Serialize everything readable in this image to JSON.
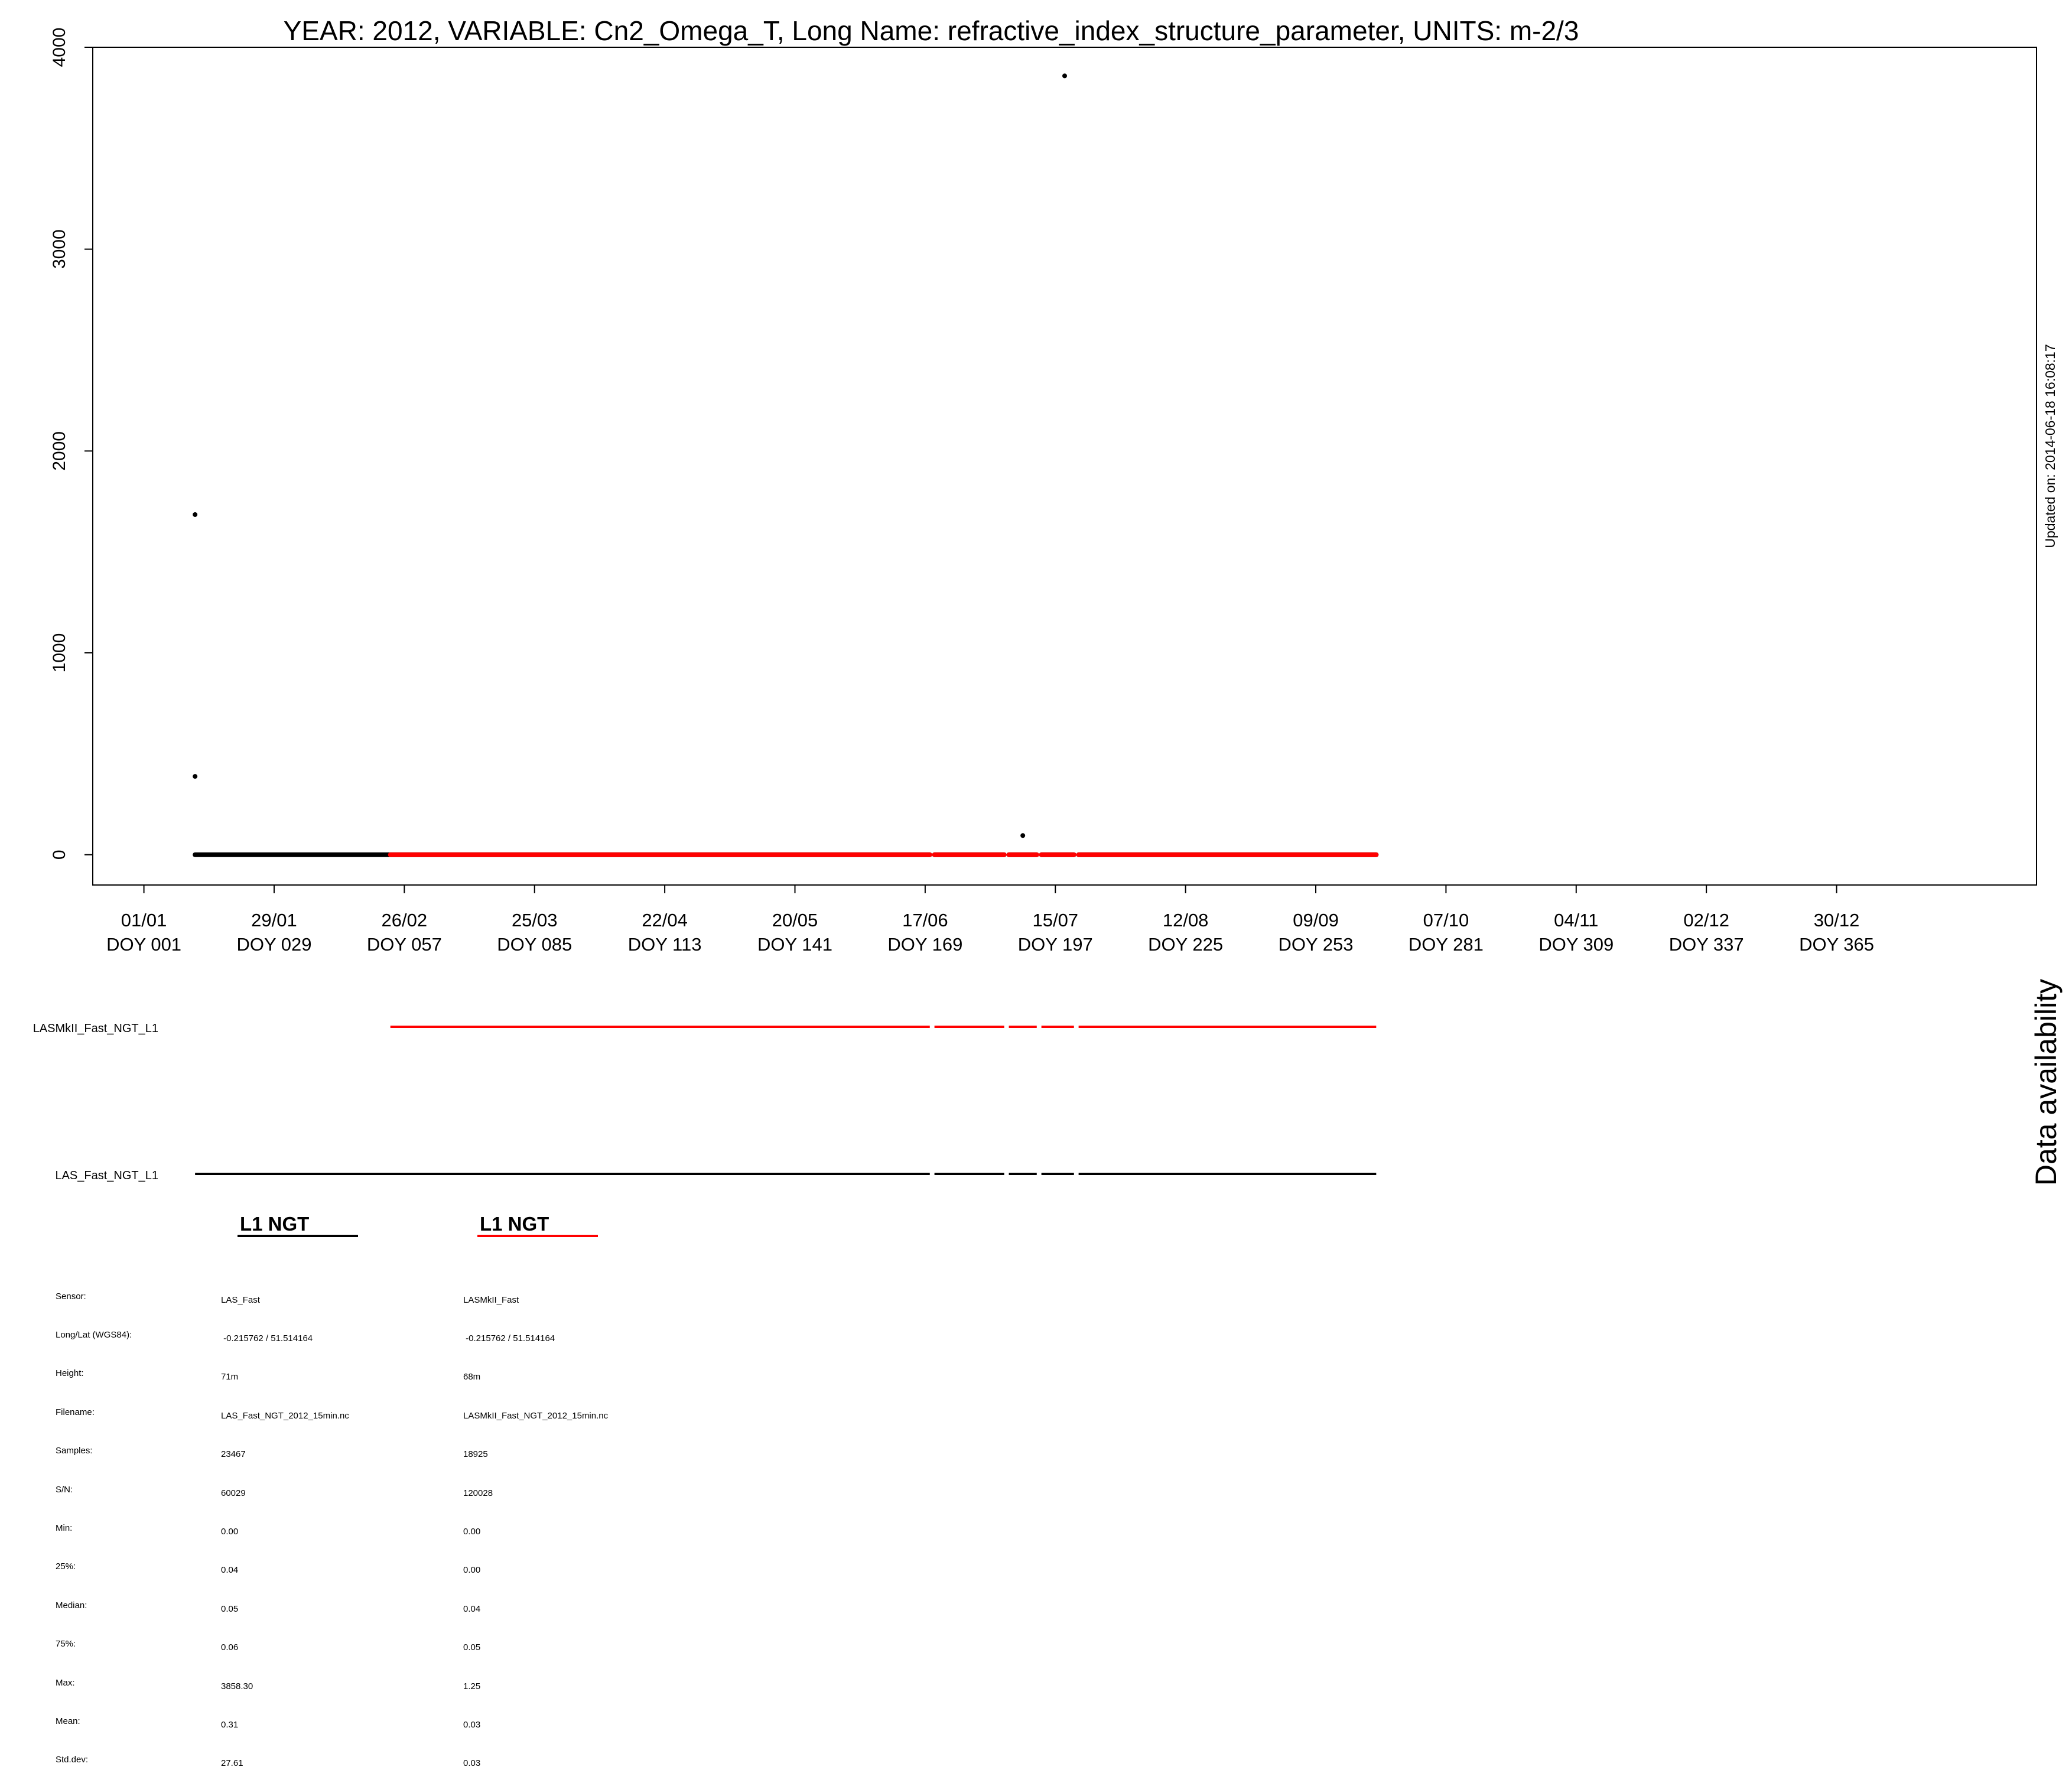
{
  "chart_data": {
    "type": "scatter",
    "title": "YEAR: 2012, VARIABLE: Cn2_Omega_T, Long Name: refractive_index_structure_parameter, UNITS: m-2/3",
    "xlabel": "",
    "ylabel": "",
    "ylim": [
      -150,
      4000
    ],
    "xlim": [
      -10,
      408
    ],
    "grid": false,
    "y_ticks": [
      0,
      1000,
      2000,
      3000,
      4000
    ],
    "x_ticks": [
      {
        "doy": 1,
        "date": "01/01",
        "label": "DOY 001"
      },
      {
        "doy": 29,
        "date": "29/01",
        "label": "DOY 029"
      },
      {
        "doy": 57,
        "date": "26/02",
        "label": "DOY 057"
      },
      {
        "doy": 85,
        "date": "25/03",
        "label": "DOY 085"
      },
      {
        "doy": 113,
        "date": "22/04",
        "label": "DOY 113"
      },
      {
        "doy": 141,
        "date": "20/05",
        "label": "DOY 141"
      },
      {
        "doy": 169,
        "date": "17/06",
        "label": "DOY 169"
      },
      {
        "doy": 197,
        "date": "15/07",
        "label": "DOY 197"
      },
      {
        "doy": 225,
        "date": "12/08",
        "label": "DOY 225"
      },
      {
        "doy": 253,
        "date": "09/09",
        "label": "DOY 253"
      },
      {
        "doy": 281,
        "date": "07/10",
        "label": "DOY 281"
      },
      {
        "doy": 309,
        "date": "04/11",
        "label": "DOY 309"
      },
      {
        "doy": 337,
        "date": "02/12",
        "label": "DOY 337"
      },
      {
        "doy": 365,
        "date": "30/12",
        "label": "DOY 365"
      }
    ],
    "series": [
      {
        "name": "LAS_Fast_NGT_L1",
        "color": "#000000",
        "baseline_segments": [
          [
            12,
            170
          ],
          [
            171,
            186
          ],
          [
            187,
            193
          ],
          [
            194,
            201
          ],
          [
            202,
            266
          ]
        ],
        "baseline_value": 0,
        "outliers": [
          {
            "doy": 12,
            "value": 1685
          },
          {
            "doy": 12,
            "value": 388
          },
          {
            "doy": 190,
            "value": 95
          },
          {
            "doy": 199,
            "value": 3858.3
          }
        ]
      },
      {
        "name": "LASMkII_Fast_NGT_L1",
        "color": "#ff0000",
        "baseline_segments": [
          [
            54,
            170
          ],
          [
            171,
            186
          ],
          [
            187,
            193
          ],
          [
            194,
            201
          ],
          [
            202,
            266
          ]
        ],
        "baseline_value": 0,
        "outliers": []
      }
    ]
  },
  "updated_label": "Updated on: 2014-06-18 16:08:17",
  "availability": {
    "title": "Data availability",
    "rows": [
      {
        "label": "LASMkII_Fast_NGT_L1",
        "color": "#ff0000",
        "segments": [
          [
            54,
            170
          ],
          [
            171,
            186
          ],
          [
            187,
            193
          ],
          [
            194,
            201
          ],
          [
            202,
            266
          ]
        ]
      },
      {
        "label": "LAS_Fast_NGT_L1",
        "color": "#000000",
        "segments": [
          [
            12,
            170
          ],
          [
            171,
            186
          ],
          [
            187,
            193
          ],
          [
            194,
            201
          ],
          [
            202,
            266
          ]
        ]
      }
    ]
  },
  "legend": [
    {
      "title": "L1 NGT",
      "color": "#000000"
    },
    {
      "title": "L1 NGT",
      "color": "#ff0000"
    }
  ],
  "stats": {
    "labels": [
      "Sensor:",
      "Long/Lat (WGS84):",
      "Height:",
      "Filename:",
      "Samples:",
      "S/N:",
      "Min:",
      "25%:",
      "Median:",
      "75%:",
      "Max:",
      "Mean:",
      "Std.dev:"
    ],
    "columns": [
      {
        "sensor": "LAS_Fast",
        "longlat": " -0.215762 / 51.514164",
        "height": "71m",
        "filename": "LAS_Fast_NGT_2012_15min.nc",
        "samples": "23467",
        "sn": "60029",
        "min": "0.00",
        "p25": "0.04",
        "median": "0.05",
        "p75": "0.06",
        "max": "3858.30",
        "mean": "0.31",
        "std": "27.61"
      },
      {
        "sensor": "LASMkII_Fast",
        "longlat": " -0.215762 / 51.514164",
        "height": "68m",
        "filename": "LASMkII_Fast_NGT_2012_15min.nc",
        "samples": "18925",
        "sn": "120028",
        "min": "0.00",
        "p25": "0.00",
        "median": "0.04",
        "p75": "0.05",
        "max": "1.25",
        "mean": "0.03",
        "std": "0.03"
      }
    ]
  }
}
